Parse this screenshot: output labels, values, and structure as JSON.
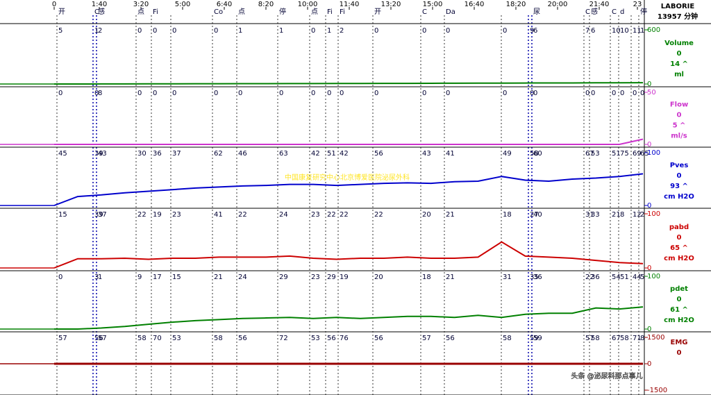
{
  "header": {
    "title": "LABORIE",
    "duration": "13957 分钟"
  },
  "time_labels": [
    "0",
    "1:40",
    "3:20",
    "5:00",
    "6:40",
    "8:20",
    "10:00",
    "11:40",
    "13:20",
    "15:00",
    "16:40",
    "18:20",
    "20:00",
    "21:40",
    "23"
  ],
  "events": [
    "开",
    "C",
    "感",
    "点",
    "Fi",
    null,
    "Co",
    "点",
    "停",
    "点",
    "Fi",
    "Fi",
    "开",
    "C",
    "Da",
    null,
    null,
    "尿",
    "C",
    "感",
    "C",
    "d",
    null,
    "停"
  ],
  "channels": [
    {
      "name": "Volume",
      "zero": "0",
      "reading": "14 ^",
      "unit": "ml",
      "color": "#008000",
      "ylim": [
        0,
        600
      ],
      "yticks": [
        0,
        600
      ],
      "marks": [
        "5",
        "1",
        "2",
        "0",
        "0",
        "0",
        "0",
        "1",
        "1",
        "0",
        "1",
        "2",
        "0",
        "0",
        "0",
        "0",
        "9",
        "6",
        "7",
        "6",
        "10",
        "10",
        "11",
        "1"
      ],
      "values": [
        0,
        0,
        1,
        1,
        2,
        2,
        3,
        3,
        4,
        4,
        5,
        5,
        6,
        6,
        7,
        7,
        8,
        9,
        10,
        10,
        11,
        12,
        12,
        13,
        13,
        14
      ]
    },
    {
      "name": "Flow",
      "zero": "0",
      "reading": "5 ^",
      "unit": "ml/s",
      "color": "#cc33cc",
      "ylim": [
        0,
        50
      ],
      "yticks": [
        0,
        50
      ],
      "marks": [
        "0",
        "0",
        "8",
        "0",
        "0",
        "0",
        "0",
        "0",
        "0",
        "0",
        "0",
        "0",
        "0",
        "0",
        "0",
        "0",
        "0",
        "0",
        "0",
        "0",
        "0",
        "0",
        "0",
        "0"
      ],
      "values": [
        0,
        0,
        0,
        0,
        0,
        0,
        0,
        0,
        0,
        0,
        0,
        0,
        0,
        0,
        0,
        0,
        0,
        0,
        0,
        0,
        0,
        0,
        0,
        0,
        0,
        5
      ]
    },
    {
      "name": "Pves",
      "zero": "0",
      "reading": "93 ^",
      "unit": "cm H2O",
      "color": "#0000cc",
      "ylim": [
        0,
        100
      ],
      "yticks": [
        0,
        100
      ],
      "marks": [
        "45",
        "39",
        "43",
        "30",
        "36",
        "37",
        "62",
        "46",
        "63",
        "42",
        "51",
        "42",
        "56",
        "43",
        "41",
        "49",
        "58",
        "60",
        "67",
        "53",
        "51",
        "75",
        "69",
        "65"
      ],
      "values": [
        0,
        17,
        20,
        24,
        27,
        30,
        33,
        35,
        37,
        38,
        40,
        40,
        38,
        40,
        42,
        43,
        42,
        45,
        46,
        55,
        48,
        46,
        50,
        52,
        55,
        60
      ]
    },
    {
      "name": "pabd",
      "zero": "0",
      "reading": "65 ^",
      "unit": "cm H2O",
      "color": "#cc0000",
      "ylim": [
        0,
        100
      ],
      "yticks": [
        0,
        100
      ],
      "marks": [
        "15",
        "39",
        "37",
        "22",
        "19",
        "23",
        "41",
        "22",
        "24",
        "23",
        "22",
        "22",
        "22",
        "20",
        "21",
        "18",
        "27",
        "40",
        "31",
        "33",
        "21",
        "8",
        "12",
        "2"
      ],
      "values": [
        0,
        17,
        17,
        18,
        16,
        18,
        18,
        20,
        20,
        20,
        22,
        18,
        16,
        18,
        18,
        20,
        18,
        18,
        20,
        48,
        22,
        20,
        18,
        14,
        10,
        8
      ]
    },
    {
      "name": "pdet",
      "zero": "0",
      "reading": "61 ^",
      "unit": "cm H2O",
      "color": "#008000",
      "ylim": [
        0,
        100
      ],
      "yticks": [
        0,
        100
      ],
      "marks": [
        "0",
        "3",
        "1",
        "9",
        "17",
        "15",
        "21",
        "24",
        "29",
        "23",
        "29",
        "19",
        "20",
        "18",
        "21",
        "31",
        "35",
        "36",
        "22",
        "36",
        "54",
        "51",
        "44",
        "5"
      ],
      "values": [
        0,
        0,
        2,
        5,
        9,
        13,
        16,
        18,
        20,
        21,
        22,
        20,
        22,
        20,
        22,
        24,
        24,
        22,
        26,
        22,
        28,
        30,
        30,
        40,
        38,
        42
      ]
    },
    {
      "name": "EMG",
      "zero": "0",
      "color": "#990000",
      "ylim": [
        -1500,
        1500
      ],
      "yticks": [
        -1500,
        0,
        1500
      ],
      "marks": [
        "57",
        "56",
        "57",
        "58",
        "70",
        "53",
        "58",
        "56",
        "72",
        "53",
        "56",
        "76",
        "56",
        "57",
        "56",
        "58",
        "59",
        "59",
        "57",
        "58",
        "67",
        "58",
        "71",
        "8"
      ],
      "values": [
        0,
        0,
        0,
        0,
        0,
        0,
        0,
        0,
        0,
        0,
        0,
        0,
        0,
        0,
        0,
        0,
        0,
        0,
        0,
        0,
        0,
        0,
        0,
        0,
        0,
        0
      ]
    }
  ],
  "watermark": "中国康复研究中心北京博爱医院泌尿外科",
  "credit": "头条 @泌尿科那点事儿"
}
